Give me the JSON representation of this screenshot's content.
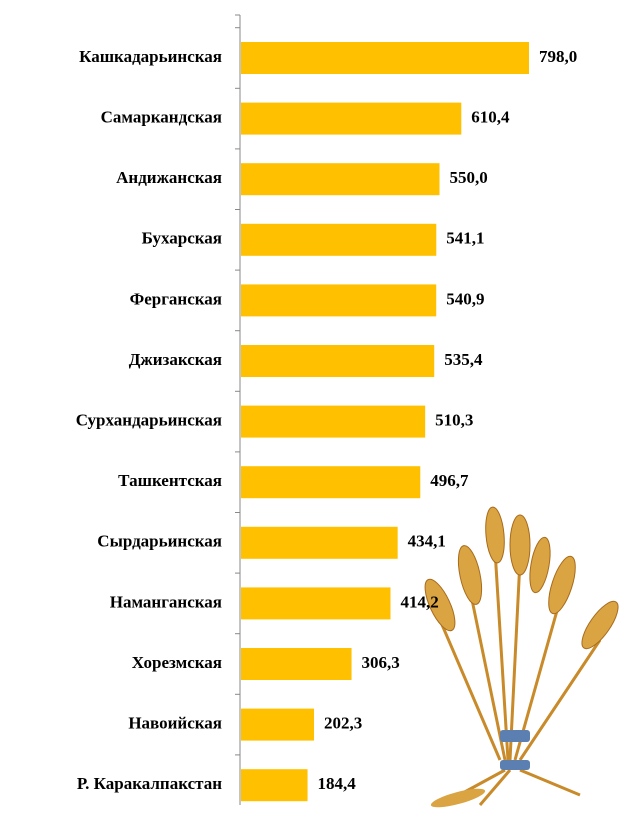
{
  "chart_data": {
    "type": "bar",
    "orientation": "horizontal",
    "categories": [
      "Кашкадарьинская",
      "Самаркандская",
      "Андижанская",
      "Бухарская",
      "Ферганская",
      "Джизакская",
      "Сурхандарьинская",
      "Ташкентская",
      "Сырдарьинская",
      "Наманганская",
      "Хорезмская",
      "Навоийская",
      "Р. Каракалпакстан"
    ],
    "values": [
      798.0,
      610.4,
      550.0,
      541.1,
      540.9,
      535.4,
      510.3,
      496.7,
      434.1,
      414.2,
      306.3,
      202.3,
      184.4
    ],
    "value_labels": [
      "798,0",
      "610,4",
      "550,0",
      "541,1",
      "540,9",
      "535,4",
      "510,3",
      "496,7",
      "434,1",
      "414,2",
      "306,3",
      "202,3",
      "184,4"
    ],
    "color": "#ffc000"
  }
}
